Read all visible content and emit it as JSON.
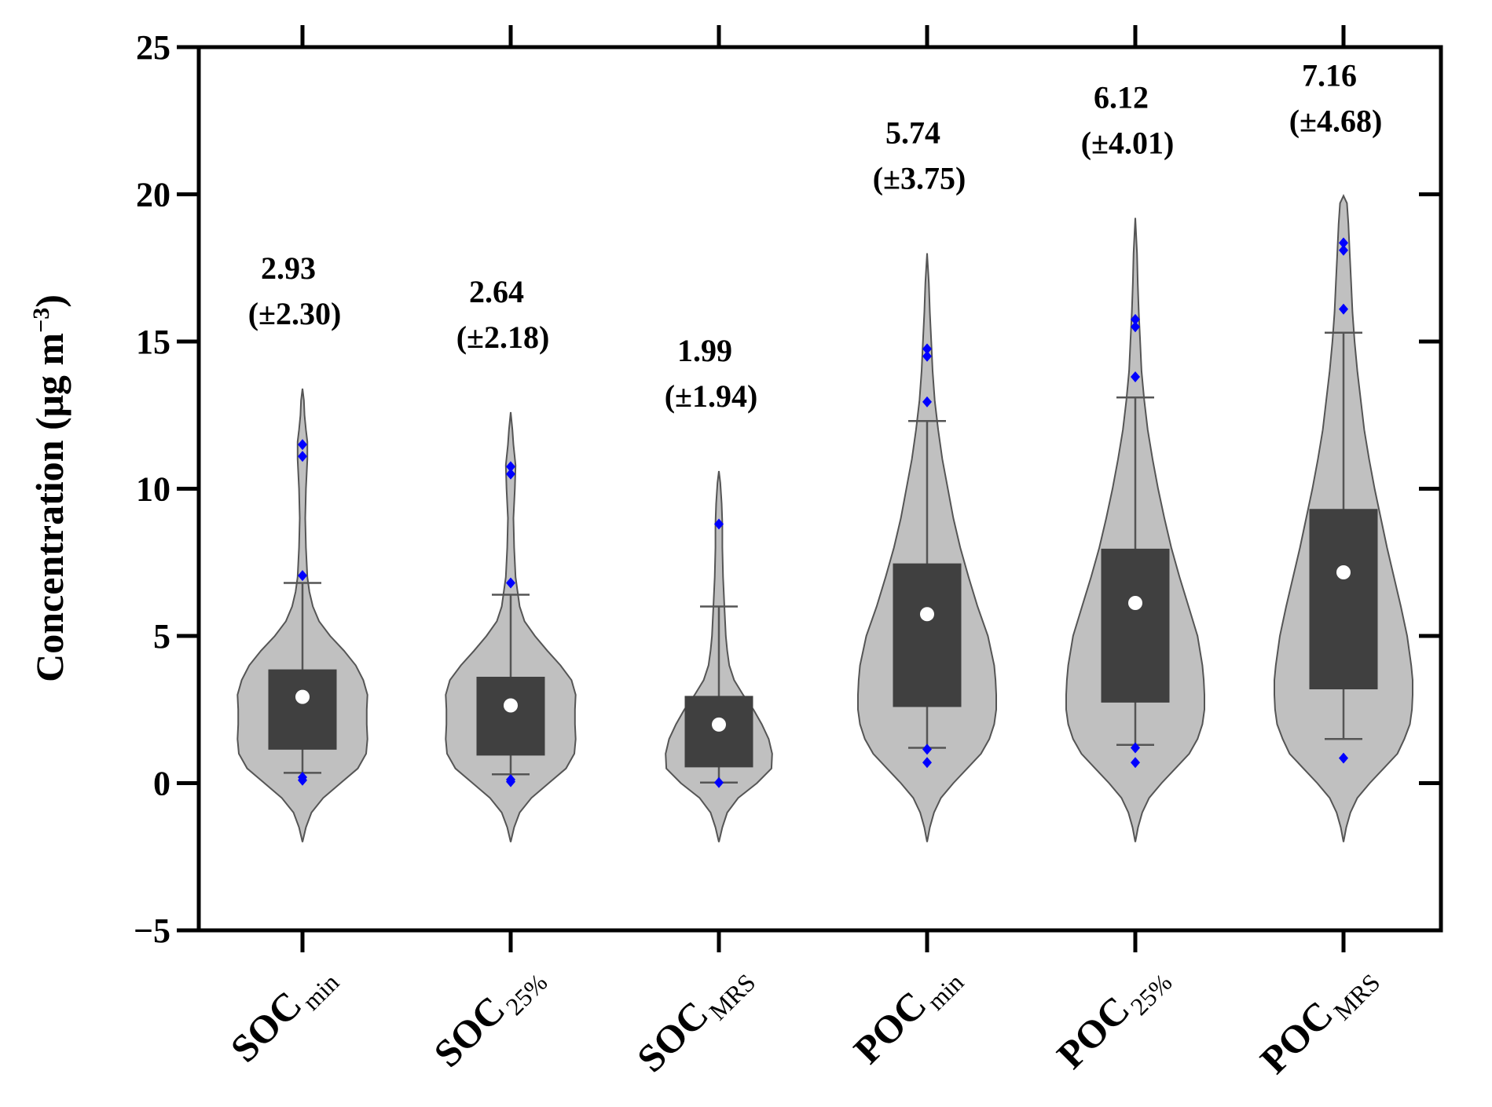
{
  "chart_data": {
    "type": "violin",
    "ylabel": "Concentration (μg m",
    "ylabel_sup": "−3",
    "ylabel_close": ")",
    "ylim": [
      -5,
      25
    ],
    "yticks": [
      -5,
      0,
      5,
      10,
      15,
      20,
      25
    ],
    "ytick_labels": [
      "−5",
      "0",
      "5",
      "10",
      "15",
      "20",
      "25"
    ],
    "grid": false,
    "colors": {
      "violin_fill": "#c0c0c0",
      "violin_stroke": "#555555",
      "box_fill": "#404040",
      "whisker": "#555555",
      "mean_marker": "#ffffff",
      "outlier": "#0000ff"
    },
    "series": [
      {
        "name": "SOCmin",
        "label_main": "SOC",
        "label_sub": "min",
        "mean": 2.93,
        "mean_text": "2.93",
        "sd_text": "(±2.30)",
        "q1": 1.15,
        "q3": 3.85,
        "whisker_low": 0.35,
        "whisker_high": 6.8,
        "outliers": [
          0.1,
          0.2,
          7.05,
          11.1,
          11.5
        ],
        "density": [
          [
            -2,
            0.0
          ],
          [
            -1.5,
            0.05
          ],
          [
            -1,
            0.13
          ],
          [
            -0.5,
            0.3
          ],
          [
            0,
            0.55
          ],
          [
            0.5,
            0.8
          ],
          [
            1,
            0.92
          ],
          [
            1.5,
            0.94
          ],
          [
            2,
            0.93
          ],
          [
            2.5,
            0.93
          ],
          [
            3,
            0.94
          ],
          [
            3.5,
            0.88
          ],
          [
            4,
            0.77
          ],
          [
            4.5,
            0.6
          ],
          [
            5,
            0.4
          ],
          [
            5.5,
            0.24
          ],
          [
            6,
            0.15
          ],
          [
            6.5,
            0.1
          ],
          [
            7,
            0.07
          ],
          [
            8,
            0.05
          ],
          [
            9,
            0.04
          ],
          [
            10,
            0.05
          ],
          [
            11,
            0.07
          ],
          [
            11.6,
            0.07
          ],
          [
            12,
            0.05
          ],
          [
            12.5,
            0.03
          ],
          [
            13,
            0.02
          ],
          [
            13.4,
            0.0
          ]
        ]
      },
      {
        "name": "SOC25%",
        "label_main": "SOC",
        "label_sub": "25%",
        "mean": 2.64,
        "mean_text": "2.64",
        "sd_text": "(±2.18)",
        "q1": 0.95,
        "q3": 3.6,
        "whisker_low": 0.3,
        "whisker_high": 6.4,
        "outliers": [
          0.05,
          0.12,
          6.8,
          10.5,
          10.75
        ],
        "density": [
          [
            -2,
            0.0
          ],
          [
            -1.5,
            0.05
          ],
          [
            -1,
            0.13
          ],
          [
            -0.5,
            0.3
          ],
          [
            0,
            0.55
          ],
          [
            0.5,
            0.8
          ],
          [
            1,
            0.92
          ],
          [
            1.5,
            0.94
          ],
          [
            2,
            0.93
          ],
          [
            2.5,
            0.93
          ],
          [
            3,
            0.94
          ],
          [
            3.5,
            0.88
          ],
          [
            4,
            0.72
          ],
          [
            4.5,
            0.53
          ],
          [
            5,
            0.35
          ],
          [
            5.5,
            0.2
          ],
          [
            6,
            0.13
          ],
          [
            6.5,
            0.1
          ],
          [
            7,
            0.07
          ],
          [
            8,
            0.05
          ],
          [
            9,
            0.04
          ],
          [
            10,
            0.06
          ],
          [
            10.8,
            0.07
          ],
          [
            11.5,
            0.04
          ],
          [
            12,
            0.025
          ],
          [
            12.6,
            0.0
          ]
        ]
      },
      {
        "name": "SOCMRS",
        "label_main": "SOC",
        "label_sub": "MRS",
        "mean": 1.99,
        "mean_text": "1.99",
        "sd_text": "(±1.94)",
        "q1": 0.55,
        "q3": 2.95,
        "whisker_low": 0.02,
        "whisker_high": 6.0,
        "outliers": [
          0.02,
          8.8
        ],
        "density": [
          [
            -2,
            0.0
          ],
          [
            -1.5,
            0.05
          ],
          [
            -1,
            0.12
          ],
          [
            -0.5,
            0.28
          ],
          [
            0,
            0.55
          ],
          [
            0.5,
            0.76
          ],
          [
            1,
            0.77
          ],
          [
            1.5,
            0.72
          ],
          [
            2,
            0.62
          ],
          [
            2.5,
            0.5
          ],
          [
            3,
            0.35
          ],
          [
            3.5,
            0.22
          ],
          [
            4,
            0.15
          ],
          [
            4.5,
            0.12
          ],
          [
            5,
            0.1
          ],
          [
            6,
            0.08
          ],
          [
            7,
            0.06
          ],
          [
            8,
            0.05
          ],
          [
            8.8,
            0.05
          ],
          [
            9.5,
            0.04
          ],
          [
            10.2,
            0.02
          ],
          [
            10.6,
            0.0
          ]
        ]
      },
      {
        "name": "POCmin",
        "label_main": "POC",
        "label_sub": "min",
        "mean": 5.74,
        "mean_text": "5.74",
        "sd_text": "(±3.75)",
        "q1": 2.6,
        "q3": 7.45,
        "whisker_low": 1.2,
        "whisker_high": 12.3,
        "outliers": [
          0.7,
          1.15,
          12.95,
          14.5,
          14.75
        ],
        "density": [
          [
            -2,
            0.0
          ],
          [
            -1.5,
            0.04
          ],
          [
            -1,
            0.1
          ],
          [
            -0.5,
            0.2
          ],
          [
            0,
            0.38
          ],
          [
            0.5,
            0.58
          ],
          [
            1,
            0.78
          ],
          [
            1.5,
            0.9
          ],
          [
            2,
            0.97
          ],
          [
            2.5,
            1.0
          ],
          [
            3,
            1.0
          ],
          [
            3.5,
            0.99
          ],
          [
            4,
            0.97
          ],
          [
            5,
            0.88
          ],
          [
            6,
            0.73
          ],
          [
            7,
            0.6
          ],
          [
            8,
            0.48
          ],
          [
            9,
            0.38
          ],
          [
            10,
            0.3
          ],
          [
            11,
            0.22
          ],
          [
            12,
            0.16
          ],
          [
            13,
            0.11
          ],
          [
            14,
            0.08
          ],
          [
            15,
            0.06
          ],
          [
            16,
            0.04
          ],
          [
            17,
            0.025
          ],
          [
            18,
            0.0
          ]
        ]
      },
      {
        "name": "POC25%",
        "label_main": "POC",
        "label_sub": "25%",
        "mean": 6.12,
        "mean_text": "6.12",
        "sd_text": "(±4.01)",
        "q1": 2.75,
        "q3": 7.95,
        "whisker_low": 1.3,
        "whisker_high": 13.1,
        "outliers": [
          0.7,
          1.2,
          13.8,
          15.5,
          15.75
        ],
        "density": [
          [
            -2,
            0.0
          ],
          [
            -1.5,
            0.04
          ],
          [
            -1,
            0.1
          ],
          [
            -0.5,
            0.2
          ],
          [
            0,
            0.38
          ],
          [
            0.5,
            0.58
          ],
          [
            1,
            0.78
          ],
          [
            1.5,
            0.9
          ],
          [
            2,
            0.97
          ],
          [
            2.5,
            1.0
          ],
          [
            3,
            1.0
          ],
          [
            3.5,
            0.99
          ],
          [
            4,
            0.97
          ],
          [
            5,
            0.9
          ],
          [
            6,
            0.77
          ],
          [
            7,
            0.64
          ],
          [
            8,
            0.52
          ],
          [
            9,
            0.42
          ],
          [
            10,
            0.33
          ],
          [
            11,
            0.25
          ],
          [
            12,
            0.18
          ],
          [
            13,
            0.13
          ],
          [
            14,
            0.09
          ],
          [
            15,
            0.07
          ],
          [
            16,
            0.05
          ],
          [
            17,
            0.035
          ],
          [
            18,
            0.025
          ],
          [
            19.2,
            0.0
          ]
        ]
      },
      {
        "name": "POCMRS",
        "label_main": "POC",
        "label_sub": "MRS",
        "mean": 7.16,
        "mean_text": "7.16",
        "sd_text": "(±4.68)",
        "q1": 3.2,
        "q3": 9.3,
        "whisker_low": 1.5,
        "whisker_high": 15.3,
        "outliers": [
          0.85,
          16.1,
          18.1,
          18.35
        ],
        "density": [
          [
            -2,
            0.0
          ],
          [
            -1.5,
            0.04
          ],
          [
            -1,
            0.1
          ],
          [
            -0.5,
            0.2
          ],
          [
            0,
            0.38
          ],
          [
            0.5,
            0.58
          ],
          [
            1,
            0.78
          ],
          [
            1.5,
            0.88
          ],
          [
            2,
            0.96
          ],
          [
            2.5,
            0.99
          ],
          [
            3,
            1.0
          ],
          [
            3.5,
            1.0
          ],
          [
            4,
            0.98
          ],
          [
            5,
            0.92
          ],
          [
            6,
            0.83
          ],
          [
            7,
            0.73
          ],
          [
            8,
            0.63
          ],
          [
            9,
            0.54
          ],
          [
            10,
            0.45
          ],
          [
            11,
            0.37
          ],
          [
            12,
            0.3
          ],
          [
            13,
            0.25
          ],
          [
            14,
            0.2
          ],
          [
            15,
            0.16
          ],
          [
            16,
            0.13
          ],
          [
            17,
            0.11
          ],
          [
            18,
            0.09
          ],
          [
            19,
            0.07
          ],
          [
            19.7,
            0.05
          ],
          [
            19.95,
            0.0
          ]
        ]
      }
    ]
  }
}
